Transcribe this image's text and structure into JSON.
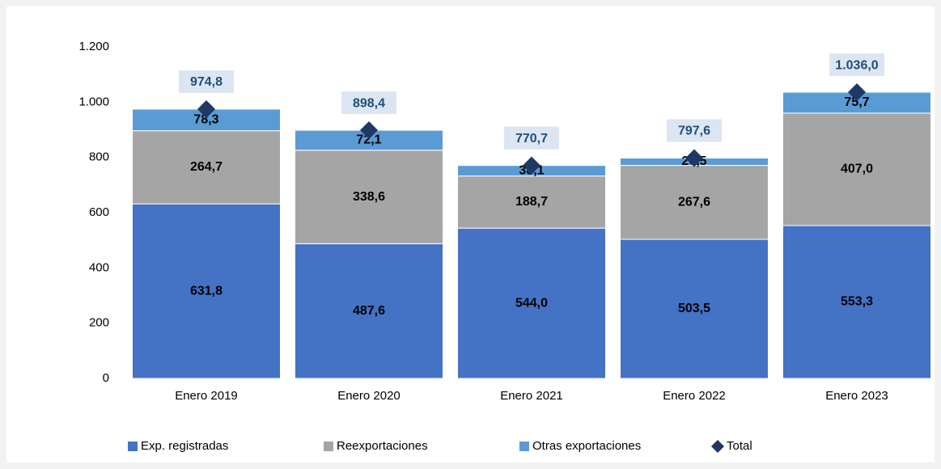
{
  "chart_data": {
    "type": "stacked-bar",
    "categories": [
      "Enero 2019",
      "Enero 2020",
      "Enero 2021",
      "Enero 2022",
      "Enero 2023"
    ],
    "series": [
      {
        "name": "Exp. registradas",
        "color": "#4472c4",
        "values": [
          631.8,
          487.6,
          544.0,
          503.5,
          553.3
        ],
        "value_labels": [
          "631,8",
          "487,6",
          "544,0",
          "503,5",
          "553,3"
        ]
      },
      {
        "name": "Reexportaciones",
        "color": "#a5a5a5",
        "values": [
          264.7,
          338.6,
          188.7,
          267.6,
          407.0
        ],
        "value_labels": [
          "264,7",
          "338,6",
          "188,7",
          "267,6",
          "407,0"
        ]
      },
      {
        "name": "Otras exportaciones",
        "color": "#5b9bd5",
        "values": [
          78.3,
          72.1,
          38.1,
          26.5,
          75.7
        ],
        "value_labels": [
          "78,3",
          "72,1",
          "38,1",
          "26,5",
          "75,7"
        ]
      }
    ],
    "total": {
      "name": "Total",
      "color": "#1f3864",
      "values": [
        974.8,
        898.4,
        770.7,
        797.6,
        1036.0
      ],
      "value_labels": [
        "974,8",
        "898,4",
        "770,7",
        "797,6",
        "1.036,0"
      ]
    },
    "ylim": [
      0,
      1200
    ],
    "yticks": [
      0,
      200,
      400,
      600,
      800,
      1000,
      {
        "value": 1000,
        "label": "1.000"
      },
      {
        "value": 1200,
        "label": "1.200"
      }
    ]
  }
}
